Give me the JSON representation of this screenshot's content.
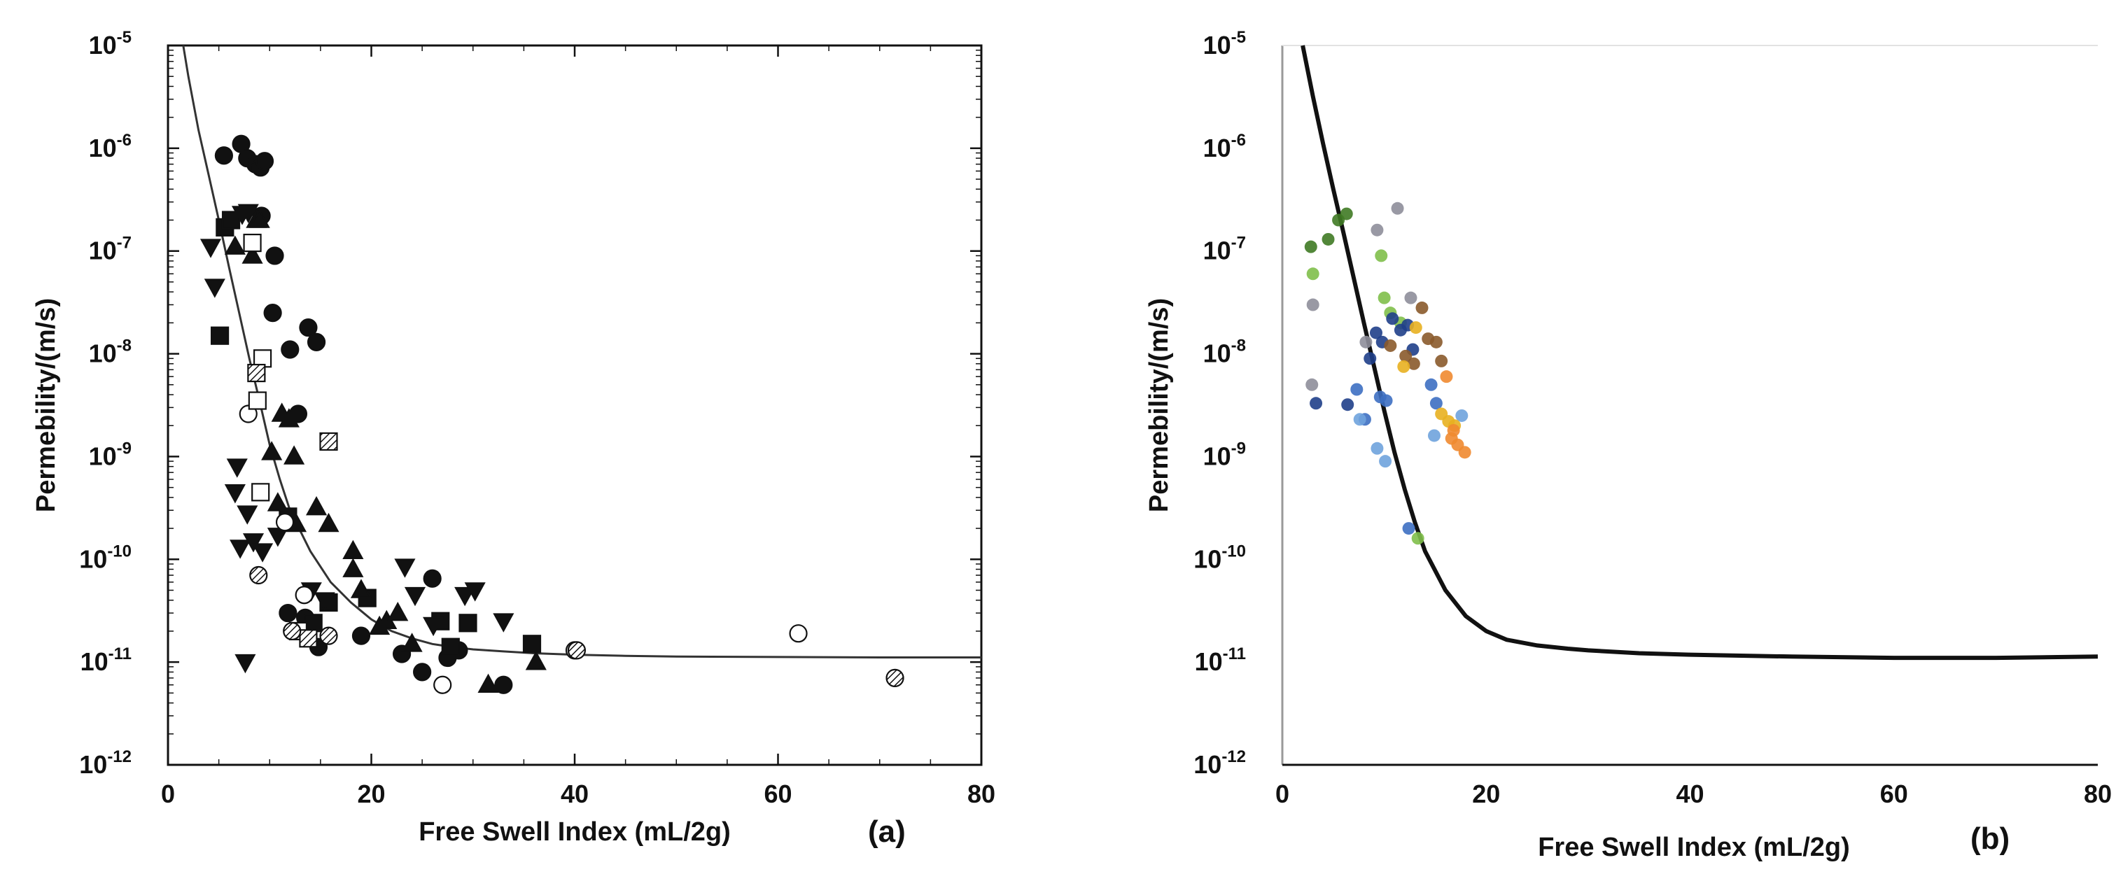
{
  "chart_data": [
    {
      "type": "scatter",
      "panel_label": "(a)",
      "xlabel": "Free Swell Index (mL/2g)",
      "ylabel": "Permebility/(m/s)",
      "x_scale": "linear",
      "y_scale": "log",
      "xlim": [
        0,
        80
      ],
      "ylim": [
        1e-12,
        1e-05
      ],
      "x_ticks": [
        0,
        20,
        40,
        60,
        80
      ],
      "x_tick_labels": [
        "0",
        "20",
        "40",
        "60",
        "80"
      ],
      "y_ticks": [
        -12,
        -11,
        -10,
        -9,
        -8,
        -7,
        -6,
        -5
      ],
      "y_tick_base": "10",
      "y_tick_exponents": [
        "-12",
        "-11",
        "-10",
        "-9",
        "-8",
        "-7",
        "-6",
        "-5"
      ],
      "grid": false,
      "fitted_curve": {
        "name": "trend",
        "color": "#333333",
        "x": [
          1.5,
          2,
          3,
          4,
          5,
          6,
          7,
          8,
          9,
          10,
          11,
          12,
          14,
          16,
          18,
          20,
          22,
          24,
          26,
          28,
          30,
          33,
          36,
          40,
          45,
          50,
          60,
          70,
          80
        ],
        "y": [
          1e-05,
          5e-06,
          1.5e-06,
          5.5e-07,
          2e-07,
          7e-08,
          2.5e-08,
          9e-09,
          3.5e-09,
          1.3e-09,
          6e-10,
          3e-10,
          1.2e-10,
          6e-11,
          3.8e-11,
          2.6e-11,
          2e-11,
          1.7e-11,
          1.5e-11,
          1.4e-11,
          1.33e-11,
          1.27e-11,
          1.22e-11,
          1.18e-11,
          1.15e-11,
          1.13e-11,
          1.12e-11,
          1.11e-11,
          1.11e-11
        ]
      },
      "series": [
        {
          "name": "filled circles",
          "marker": "circle",
          "fill": "#111111",
          "x": [
            5.5,
            7.2,
            7.8,
            8.6,
            9.1,
            9.5,
            9.2,
            10.5,
            10.3,
            12,
            13.8,
            14.6,
            12.8,
            11.8,
            13.5,
            14.8,
            19,
            23,
            25,
            26,
            27.5,
            28.6,
            33
          ],
          "y": [
            8.5e-07,
            1.1e-06,
            8e-07,
            7e-07,
            6.5e-07,
            7.5e-07,
            2.2e-07,
            9e-08,
            2.5e-08,
            1.1e-08,
            1.8e-08,
            1.3e-08,
            2.6e-09,
            3e-11,
            2.7e-11,
            1.4e-11,
            1.8e-11,
            1.2e-11,
            8e-12,
            6.5e-11,
            1.1e-11,
            1.3e-11,
            6e-12
          ]
        },
        {
          "name": "filled squares",
          "marker": "square",
          "fill": "#111111",
          "x": [
            5.6,
            5.1,
            6.2,
            11.8,
            14.3,
            15.8,
            19.6,
            26.8,
            27.8,
            29.5,
            35.8
          ],
          "y": [
            1.7e-07,
            1.5e-08,
            2e-07,
            2.6e-10,
            2.4e-11,
            3.8e-11,
            4.2e-11,
            2.5e-11,
            1.4e-11,
            2.4e-11,
            1.5e-11
          ]
        },
        {
          "name": "filled triangles up",
          "marker": "triangle-up",
          "fill": "#111111",
          "x": [
            6.6,
            8.3,
            8.7,
            9,
            11.2,
            11.9,
            12.4,
            10.2,
            10.8,
            12.6,
            14.6,
            15.8,
            18.2,
            21.5,
            20.8,
            22.6,
            24,
            31.5,
            36.2,
            18.2,
            19
          ],
          "y": [
            1.1e-07,
            9e-08,
            2e-07,
            2e-07,
            2.6e-09,
            2.3e-09,
            1e-09,
            1.1e-09,
            3.5e-10,
            2.2e-10,
            3.2e-10,
            2.2e-10,
            1.2e-10,
            2.5e-11,
            2.2e-11,
            3e-11,
            1.5e-11,
            6e-12,
            1e-11,
            8e-11,
            5e-11
          ]
        },
        {
          "name": "filled triangles down",
          "marker": "triangle-down",
          "fill": "#111111",
          "x": [
            4.2,
            4.6,
            7.3,
            7.9,
            6.8,
            6.6,
            7.1,
            8.4,
            9.3,
            10.8,
            7.6,
            14.1,
            15.4,
            23.3,
            24.3,
            26.1,
            29.2,
            30.2,
            33,
            7.8
          ],
          "y": [
            1.1e-07,
            4.5e-08,
            2.3e-07,
            2.4e-07,
            8e-10,
            4.5e-10,
            1.3e-10,
            1.5e-10,
            1.2e-10,
            1.7e-10,
            1e-11,
            5e-11,
            4e-11,
            8.5e-11,
            4.5e-11,
            2.3e-11,
            4.5e-11,
            5e-11,
            2.5e-11,
            2.8e-10
          ]
        },
        {
          "name": "open circles",
          "marker": "circle",
          "fill": "#ffffff",
          "x": [
            7.9,
            11.5,
            13.4,
            27,
            40,
            62
          ],
          "y": [
            2.6e-09,
            2.3e-10,
            4.5e-11,
            6e-12,
            1.3e-11,
            1.9e-11
          ]
        },
        {
          "name": "open squares",
          "marker": "square",
          "fill": "#ffffff",
          "x": [
            8.3,
            8.8,
            9.3,
            9.1,
            12.8
          ],
          "y": [
            1.2e-07,
            3.5e-09,
            9e-09,
            4.5e-10,
            2e-11
          ]
        },
        {
          "name": "hatched squares",
          "marker": "square",
          "fill": "hatch",
          "x": [
            8.7,
            15.8,
            13.8
          ],
          "y": [
            6.5e-09,
            1.4e-09,
            1.7e-11
          ]
        },
        {
          "name": "hatched circles",
          "marker": "circle",
          "fill": "hatch",
          "x": [
            8.9,
            12.2,
            15.8,
            40.2,
            71.5
          ],
          "y": [
            7e-11,
            2e-11,
            1.8e-11,
            1.3e-11,
            7e-12
          ]
        }
      ]
    },
    {
      "type": "scatter",
      "panel_label": "(b)",
      "xlabel": "Free Swell Index (mL/2g)",
      "ylabel": "Permebility/(m/s)",
      "x_scale": "linear",
      "y_scale": "log",
      "xlim": [
        0,
        80
      ],
      "ylim": [
        1e-12,
        1e-05
      ],
      "x_ticks": [
        0,
        20,
        40,
        60,
        80
      ],
      "x_tick_labels": [
        "0",
        "20",
        "40",
        "60",
        "80"
      ],
      "y_ticks": [
        -12,
        -11,
        -10,
        -9,
        -8,
        -7,
        -6,
        -5
      ],
      "y_tick_base": "10",
      "y_tick_exponents": [
        "-12",
        "-11",
        "-10",
        "-9",
        "-8",
        "-7",
        "-6",
        "-5"
      ],
      "grid": false,
      "fitted_curve": {
        "name": "trend",
        "color": "#111111",
        "x": [
          2,
          3,
          4,
          5,
          6,
          7,
          8,
          9,
          10,
          11,
          12,
          13,
          14,
          16,
          18,
          20,
          22,
          25,
          28,
          30,
          35,
          40,
          50,
          60,
          70,
          80
        ],
        "y": [
          1e-05,
          3.2e-06,
          1.1e-06,
          4e-07,
          1.5e-07,
          5.5e-08,
          2e-08,
          7.5e-09,
          2.8e-09,
          1.1e-09,
          4.8e-10,
          2.3e-10,
          1.2e-10,
          5e-11,
          2.8e-11,
          2e-11,
          1.65e-11,
          1.45e-11,
          1.35e-11,
          1.3e-11,
          1.22e-11,
          1.18e-11,
          1.13e-11,
          1.1e-11,
          1.1e-11,
          1.13e-11
        ]
      },
      "series": [
        {
          "name": "dark green",
          "marker": "circle",
          "fill": "#3f7a24",
          "x": [
            2.8,
            4.5,
            5.5,
            6.3
          ],
          "y": [
            1.1e-07,
            1.3e-07,
            2e-07,
            2.3e-07
          ]
        },
        {
          "name": "light green",
          "marker": "circle",
          "fill": "#7fbf4a",
          "x": [
            3,
            9.7,
            10,
            10.6,
            11.6,
            13.3
          ],
          "y": [
            6e-08,
            9e-08,
            3.5e-08,
            2.5e-08,
            2e-08,
            1.6e-10
          ]
        },
        {
          "name": "grey",
          "marker": "circle",
          "fill": "#8e8e9a",
          "x": [
            3,
            9.3,
            11.3,
            12.6,
            2.9,
            8.2
          ],
          "y": [
            3e-08,
            1.6e-07,
            2.6e-07,
            3.5e-08,
            5e-09,
            1.3e-08
          ]
        },
        {
          "name": "dark blue",
          "marker": "circle",
          "fill": "#1f3f8a",
          "x": [
            3.3,
            6.4,
            9.2,
            9.8,
            10.8,
            11.6,
            12.3,
            12.8,
            8.6
          ],
          "y": [
            3.3e-09,
            3.2e-09,
            1.6e-08,
            1.3e-08,
            2.2e-08,
            1.7e-08,
            1.9e-08,
            1.1e-08,
            9e-09
          ]
        },
        {
          "name": "medium blue",
          "marker": "circle",
          "fill": "#3d6fc2",
          "x": [
            7.3,
            8.1,
            9.6,
            10.2,
            12.4,
            14.6,
            15.1
          ],
          "y": [
            4.5e-09,
            2.3e-09,
            3.8e-09,
            3.5e-09,
            2e-10,
            5e-09,
            3.3e-09
          ]
        },
        {
          "name": "light blue",
          "marker": "circle",
          "fill": "#6fa3dd",
          "x": [
            7.6,
            9.3,
            10.1,
            14.9,
            17.6
          ],
          "y": [
            2.3e-09,
            1.2e-09,
            9e-10,
            1.6e-09,
            2.5e-09
          ]
        },
        {
          "name": "brown",
          "marker": "circle",
          "fill": "#8a5a2b",
          "x": [
            10.6,
            12.1,
            12.9,
            13.7,
            14.3,
            15.1,
            15.6
          ],
          "y": [
            1.2e-08,
            9.5e-09,
            8e-09,
            2.8e-08,
            1.4e-08,
            1.3e-08,
            8.5e-09
          ]
        },
        {
          "name": "gold",
          "marker": "circle",
          "fill": "#e8b020",
          "x": [
            11.9,
            13.1,
            15.6,
            16.3,
            16.9
          ],
          "y": [
            7.5e-09,
            1.8e-08,
            2.6e-09,
            2.2e-09,
            2e-09
          ]
        },
        {
          "name": "orange",
          "marker": "circle",
          "fill": "#f08a30",
          "x": [
            16.1,
            16.6,
            17.2,
            17.9,
            16.8
          ],
          "y": [
            6e-09,
            1.5e-09,
            1.3e-09,
            1.1e-09,
            1.8e-09
          ]
        }
      ]
    }
  ]
}
